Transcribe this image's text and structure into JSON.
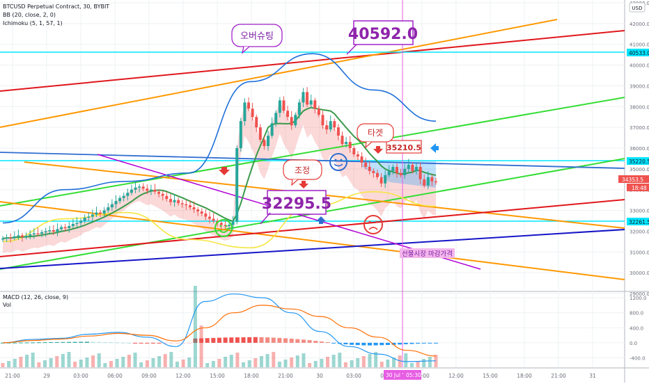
{
  "header": {
    "symbol_line": "BTCUSD Perpetual Contract, 30, BYBIT",
    "bb_line": "BB (20, close, 2, 0)",
    "ichimoku_line": "Ichimoku (5, 1, 57, 1)",
    "currency": "USD"
  },
  "macd_pane": {
    "title": "MACD (12, 26, close, 9)",
    "vol_label": "Vol"
  },
  "price_badges": {
    "level_1": "40533.0",
    "level_2": "35220.5",
    "last": "34353.5",
    "countdown": "18:48",
    "level_3": "32261.5"
  },
  "annotations": {
    "high_box": "40592.0",
    "low_box": "32295.5",
    "target_box": "35210.5",
    "bubble_overshoot": "오버슈팅",
    "bubble_target": "타겟",
    "bubble_adjust": "조정",
    "futures_close": "선물시장 마감가격"
  },
  "crosshair": {
    "time_label_1": "30 Jul '21",
    "time_label_2": "05:30"
  },
  "colors": {
    "up": "#26a69a",
    "down": "#ef5350",
    "cyan": "#00e5ff",
    "red_line": "#e0161b",
    "orange_line": "#ff9800",
    "green_line": "#33dd33",
    "blue_line": "#1515c8",
    "steel_line": "#2f6dd0",
    "purple_line": "#b000d8",
    "bb_upper": "#1e6fd9",
    "bb_lower": "#f5e642",
    "ichimoku": "#3a9a4a"
  },
  "chart_data": [
    {
      "type": "candlestick",
      "title": "BTCUSD Perpetual Contract, 30, BYBIT",
      "ylabel": "USD",
      "ylim": [
        29000,
        43000
      ],
      "y_ticks": [
        29000,
        30000,
        31000,
        32000,
        33000,
        34000,
        35000,
        36000,
        37000,
        38000,
        39000,
        40000,
        41000,
        42000,
        43000
      ],
      "x_ticks": [
        "21:00",
        "29",
        "03:00",
        "06:00",
        "09:00",
        "12:00",
        "15:00",
        "18:00",
        "21:00",
        "30",
        "03:00",
        "06:00",
        "09:00",
        "12:00",
        "15:00",
        "18:00",
        "21:00",
        "31"
      ],
      "candles_close": [
        31650,
        31700,
        31680,
        31750,
        31800,
        31720,
        31780,
        31850,
        31900,
        31880,
        31950,
        32000,
        32050,
        31980,
        32100,
        32200,
        32150,
        32250,
        32350,
        32400,
        32500,
        32650,
        32700,
        32800,
        32900,
        32850,
        33000,
        33150,
        33300,
        33450,
        33600,
        33700,
        33850,
        34000,
        34100,
        34150,
        34050,
        33950,
        34000,
        33900,
        33800,
        33700,
        33550,
        33400,
        33500,
        33350,
        33300,
        33250,
        33150,
        33050,
        32950,
        32850,
        32700,
        32600,
        32500,
        32400,
        32300,
        32250,
        32300,
        32450,
        36000,
        37300,
        38200,
        37900,
        37500,
        37000,
        36400,
        36100,
        36600,
        37200,
        37700,
        38300,
        37800,
        37500,
        37100,
        37600,
        38200,
        38700,
        38100,
        38300,
        37900,
        37600,
        37100,
        36900,
        37300,
        37000,
        36600,
        36200,
        36300,
        36000,
        35700,
        35600,
        35300,
        35100,
        34900,
        34800,
        34600,
        34300,
        34700,
        34900,
        35100,
        34800,
        34700,
        35000,
        35200,
        34900,
        35100,
        34500,
        34200,
        34600,
        34400,
        34353.5
      ],
      "series": [
        {
          "name": "BB (20, close, 2, 0)",
          "upper_anchor_values": [
            32400,
            34000,
            34400,
            34800,
            39200,
            40550,
            38800,
            37300
          ],
          "lower_anchor_values": [
            31500,
            32600,
            32900,
            31600,
            31200,
            33200,
            33900,
            33200
          ]
        }
      ],
      "horizontal_levels": [
        40533.0,
        35220.5,
        34353.5,
        32261.5
      ],
      "callouts": {
        "high": 40592.0,
        "low": 32295.5,
        "target": 35210.5
      },
      "grid": true,
      "legend": "top-left"
    },
    {
      "type": "bar",
      "title": "MACD (12, 26, close, 9)",
      "y_ticks": [
        -400.0,
        0.0,
        400.0,
        800.0,
        1200.0
      ],
      "ylim": [
        -650,
        1350
      ],
      "histogram_values": [
        10,
        15,
        20,
        30,
        35,
        40,
        50,
        60,
        70,
        75,
        80,
        90,
        95,
        100,
        110,
        100,
        85,
        70,
        55,
        40,
        20,
        5,
        -10,
        -25,
        -40,
        -55,
        -70,
        -60,
        -50,
        -40,
        -30,
        -20,
        460,
        480,
        500,
        520,
        540,
        560,
        570,
        580,
        590,
        600,
        610,
        600,
        580,
        550,
        520,
        480,
        440,
        390,
        340,
        280,
        210,
        140,
        70,
        -20,
        -100,
        -160,
        -210,
        -240,
        -270,
        -280,
        -270,
        -250,
        -230,
        -210,
        -180,
        -150,
        -120,
        -90,
        -60,
        -40,
        -20
      ],
      "macd_line_anchor_values": [
        0,
        90,
        120,
        230,
        280,
        150,
        -100,
        1100,
        1300,
        1200,
        800,
        300,
        -100,
        -300,
        -500,
        -480
      ],
      "signal_line_anchor_values": [
        0,
        60,
        100,
        180,
        250,
        200,
        50,
        400,
        800,
        1000,
        900,
        700,
        400,
        150,
        -200,
        -350
      ],
      "volume_label": "Vol"
    }
  ]
}
